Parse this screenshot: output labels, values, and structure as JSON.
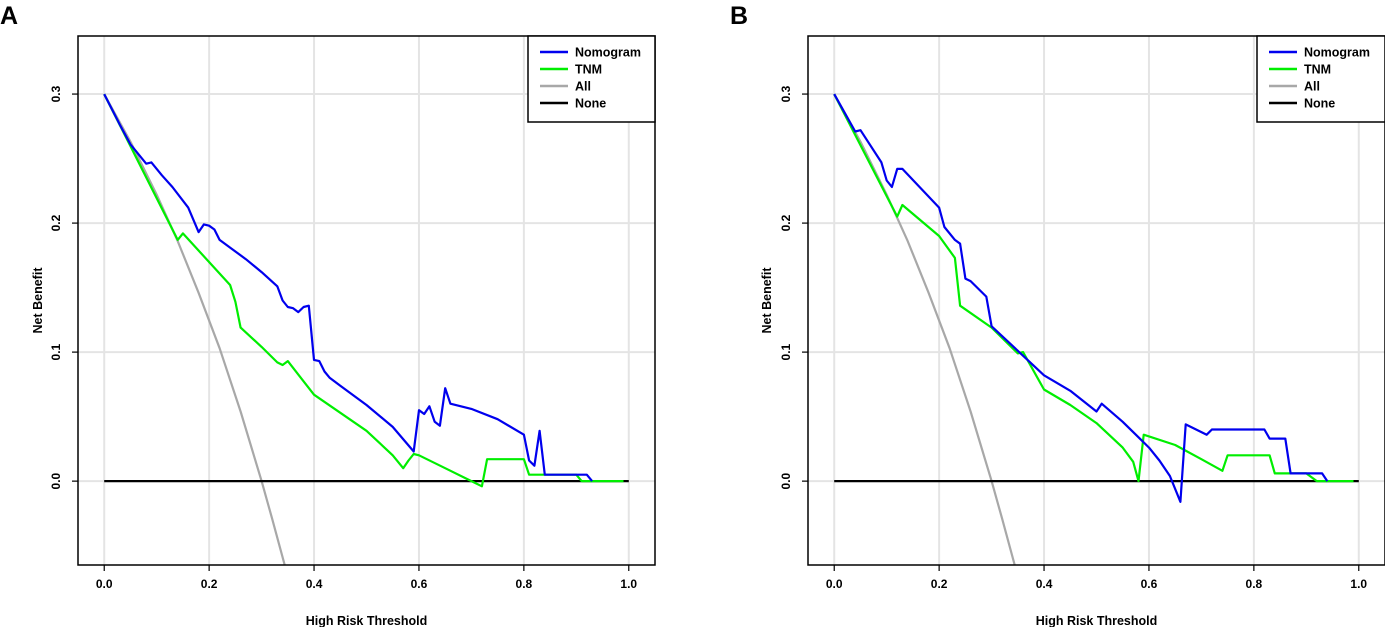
{
  "chart_data": [
    {
      "type": "line",
      "panel_label": "A",
      "title": "",
      "xlabel": "High Risk Threshold",
      "ylabel": "Net Benefit",
      "xlim": [
        -0.05,
        1.05
      ],
      "ylim": [
        -0.065,
        0.345
      ],
      "grid": true,
      "legend_position": "top-right",
      "xticks": [
        0.0,
        0.2,
        0.4,
        0.6,
        0.8,
        1.0
      ],
      "xtick_labels": [
        "0.0",
        "0.2",
        "0.4",
        "0.6",
        "0.8",
        "1.0"
      ],
      "yticks": [
        0.0,
        0.1,
        0.2,
        0.3
      ],
      "ytick_labels": [
        "0.0",
        "0.1",
        "0.2",
        "0.3"
      ],
      "series": [
        {
          "name": "Nomogram",
          "color": "#0000ee",
          "x": [
            0.0,
            0.03,
            0.05,
            0.08,
            0.09,
            0.11,
            0.13,
            0.16,
            0.18,
            0.19,
            0.2,
            0.21,
            0.22,
            0.24,
            0.27,
            0.3,
            0.33,
            0.34,
            0.35,
            0.36,
            0.37,
            0.38,
            0.39,
            0.4,
            0.41,
            0.42,
            0.43,
            0.45,
            0.5,
            0.55,
            0.59,
            0.6,
            0.61,
            0.62,
            0.63,
            0.64,
            0.65,
            0.66,
            0.7,
            0.75,
            0.8,
            0.81,
            0.82,
            0.83,
            0.84,
            0.88,
            0.9,
            0.92,
            0.93
          ],
          "y": [
            0.3,
            0.276,
            0.261,
            0.246,
            0.247,
            0.237,
            0.228,
            0.212,
            0.193,
            0.199,
            0.198,
            0.195,
            0.187,
            0.181,
            0.172,
            0.162,
            0.151,
            0.14,
            0.135,
            0.134,
            0.131,
            0.135,
            0.136,
            0.094,
            0.093,
            0.085,
            0.08,
            0.074,
            0.059,
            0.042,
            0.023,
            0.055,
            0.052,
            0.058,
            0.046,
            0.043,
            0.072,
            0.06,
            0.056,
            0.048,
            0.036,
            0.016,
            0.012,
            0.039,
            0.005,
            0.005,
            0.005,
            0.005,
            0.0
          ]
        },
        {
          "name": "TNM",
          "color": "#00ee00",
          "x": [
            0.0,
            0.14,
            0.15,
            0.24,
            0.25,
            0.26,
            0.3,
            0.33,
            0.34,
            0.35,
            0.4,
            0.5,
            0.55,
            0.57,
            0.58,
            0.59,
            0.6,
            0.65,
            0.7,
            0.72,
            0.73,
            0.8,
            0.81,
            0.82,
            0.9,
            0.91,
            0.99
          ],
          "y": [
            0.3,
            0.187,
            0.192,
            0.152,
            0.139,
            0.119,
            0.104,
            0.092,
            0.09,
            0.093,
            0.067,
            0.039,
            0.02,
            0.01,
            0.016,
            0.021,
            0.02,
            0.01,
            0.0,
            -0.004,
            0.017,
            0.017,
            0.005,
            0.005,
            0.005,
            0.0,
            0.0
          ]
        },
        {
          "name": "All",
          "color": "#a8a8a8",
          "x": [
            0.0,
            0.05,
            0.1,
            0.14,
            0.18,
            0.22,
            0.26,
            0.3,
            0.32,
            0.344
          ],
          "y": [
            0.3,
            0.263,
            0.222,
            0.186,
            0.146,
            0.103,
            0.054,
            0.0,
            -0.029,
            -0.065
          ]
        },
        {
          "name": "None",
          "color": "#000000",
          "x": [
            0.0,
            1.0
          ],
          "y": [
            0.0,
            0.0
          ]
        }
      ]
    },
    {
      "type": "line",
      "panel_label": "B",
      "title": "",
      "xlabel": "High Risk Threshold",
      "ylabel": "Net Benefit",
      "xlim": [
        -0.05,
        1.05
      ],
      "ylim": [
        -0.065,
        0.345
      ],
      "grid": true,
      "legend_position": "top-right",
      "xticks": [
        0.0,
        0.2,
        0.4,
        0.6,
        0.8,
        1.0
      ],
      "xtick_labels": [
        "0.0",
        "0.2",
        "0.4",
        "0.6",
        "0.8",
        "1.0"
      ],
      "yticks": [
        0.0,
        0.1,
        0.2,
        0.3
      ],
      "ytick_labels": [
        "0.0",
        "0.1",
        "0.2",
        "0.3"
      ],
      "series": [
        {
          "name": "Nomogram",
          "color": "#0000ee",
          "x": [
            0.0,
            0.04,
            0.05,
            0.09,
            0.1,
            0.11,
            0.12,
            0.13,
            0.2,
            0.21,
            0.23,
            0.24,
            0.25,
            0.26,
            0.28,
            0.29,
            0.3,
            0.35,
            0.4,
            0.45,
            0.5,
            0.51,
            0.55,
            0.6,
            0.62,
            0.64,
            0.66,
            0.67,
            0.7,
            0.71,
            0.72,
            0.75,
            0.8,
            0.82,
            0.83,
            0.86,
            0.87,
            0.9,
            0.93,
            0.94
          ],
          "y": [
            0.3,
            0.271,
            0.272,
            0.247,
            0.233,
            0.228,
            0.242,
            0.242,
            0.212,
            0.197,
            0.187,
            0.184,
            0.157,
            0.155,
            0.147,
            0.143,
            0.12,
            0.101,
            0.082,
            0.07,
            0.054,
            0.06,
            0.046,
            0.026,
            0.016,
            0.004,
            -0.016,
            0.044,
            0.038,
            0.036,
            0.04,
            0.04,
            0.04,
            0.04,
            0.033,
            0.033,
            0.006,
            0.006,
            0.006,
            0.0
          ]
        },
        {
          "name": "TNM",
          "color": "#00ee00",
          "x": [
            0.0,
            0.12,
            0.13,
            0.2,
            0.23,
            0.24,
            0.3,
            0.35,
            0.36,
            0.4,
            0.45,
            0.5,
            0.55,
            0.57,
            0.58,
            0.59,
            0.65,
            0.7,
            0.74,
            0.75,
            0.8,
            0.83,
            0.84,
            0.9,
            0.92,
            0.99
          ],
          "y": [
            0.3,
            0.205,
            0.214,
            0.19,
            0.173,
            0.136,
            0.119,
            0.099,
            0.1,
            0.071,
            0.059,
            0.045,
            0.026,
            0.015,
            0.0,
            0.036,
            0.028,
            0.017,
            0.008,
            0.02,
            0.02,
            0.02,
            0.006,
            0.006,
            0.0,
            0.0
          ]
        },
        {
          "name": "All",
          "color": "#a8a8a8",
          "x": [
            0.0,
            0.05,
            0.1,
            0.14,
            0.18,
            0.22,
            0.26,
            0.3,
            0.32,
            0.344
          ],
          "y": [
            0.3,
            0.263,
            0.222,
            0.186,
            0.146,
            0.103,
            0.054,
            0.0,
            -0.029,
            -0.065
          ]
        },
        {
          "name": "None",
          "color": "#000000",
          "x": [
            0.0,
            1.0
          ],
          "y": [
            0.0,
            0.0
          ]
        }
      ]
    }
  ]
}
